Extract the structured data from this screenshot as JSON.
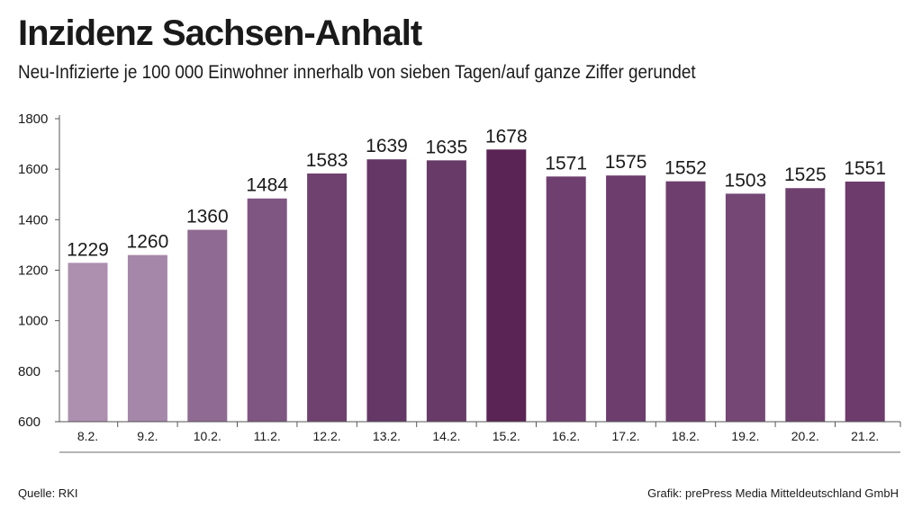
{
  "header": {
    "title": "Inzidenz Sachsen-Anhalt",
    "subtitle": "Neu-Infizierte je 100 000 Einwohner innerhalb von sieben Tagen/auf ganze Ziffer gerundet"
  },
  "footer": {
    "source": "Quelle: RKI",
    "credit": "Grafik: prePress Media Mitteldeutschland GmbH"
  },
  "chart_data": {
    "type": "bar",
    "title": "Inzidenz Sachsen-Anhalt",
    "subtitle": "Neu-Infizierte je 100 000 Einwohner innerhalb von sieben Tagen/auf ganze Ziffer gerundet",
    "categories": [
      "8.2.",
      "9.2.",
      "10.2.",
      "11.2.",
      "12.2.",
      "13.2.",
      "14.2.",
      "15.2.",
      "16.2.",
      "17.2.",
      "18.2.",
      "19.2.",
      "20.2.",
      "21.2."
    ],
    "values": [
      1229,
      1260,
      1360,
      1484,
      1583,
      1639,
      1635,
      1678,
      1571,
      1575,
      1552,
      1503,
      1525,
      1551
    ],
    "xlabel": "",
    "ylabel": "",
    "ylim": [
      600,
      1800
    ],
    "yticks": [
      600,
      800,
      1000,
      1200,
      1400,
      1600,
      1800
    ],
    "grid": false,
    "data_labels": true,
    "bar_colors": [
      "#ad8fb0",
      "#a587a9",
      "#8f6a92",
      "#7f5582",
      "#6f416f",
      "#643766",
      "#673a68",
      "#5a2454",
      "#6f3f6f",
      "#6d3d6d",
      "#6e3e6e",
      "#744775",
      "#6f416f",
      "#6d3b6c"
    ],
    "axis_color": "#555555"
  }
}
